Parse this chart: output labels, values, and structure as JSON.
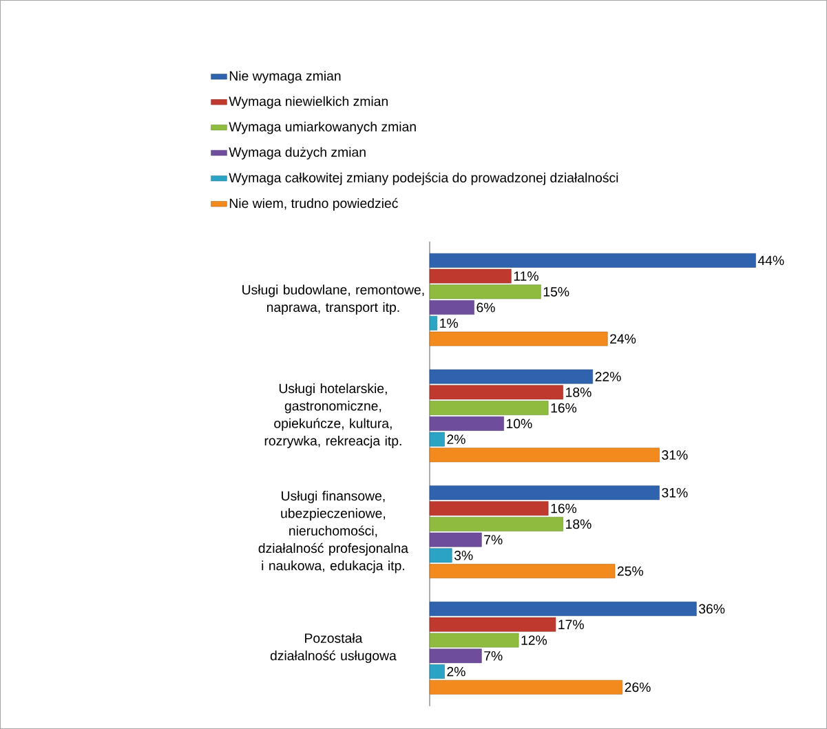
{
  "chart_data": {
    "type": "bar",
    "orientation": "horizontal",
    "legend": "top",
    "categories": [
      "Usługi budowlane, remontowe, naprawa, transport itp.",
      "Usługi hotelarskie, gastronomiczne, opiekuńcze, kultura, rozrywka, rekreacja itp.",
      "Usługi finansowe, ubezpieczeniowe, nieruchomości, działalność profesjonalna i naukowa, edukacja itp.",
      "Pozostała działalność usługowa"
    ],
    "series": [
      {
        "name": "Nie wymaga zmian",
        "color": "#2f63ad",
        "values": [
          44,
          22,
          31,
          36
        ],
        "value_labels": [
          "44%",
          "22%",
          "31%",
          "36%"
        ]
      },
      {
        "name": "Wymaga niewielkich zmian",
        "color": "#c0392f",
        "values": [
          11,
          18,
          16,
          17
        ],
        "value_labels": [
          "11%",
          "18%",
          "16%",
          "17%"
        ]
      },
      {
        "name": "Wymaga umiarkowanych zmian",
        "color": "#8fbc3f",
        "values": [
          15,
          16,
          18,
          12
        ],
        "value_labels": [
          "15%",
          "16%",
          "18%",
          "12%"
        ]
      },
      {
        "name": "Wymaga dużych zmian",
        "color": "#6e4e9c",
        "values": [
          6,
          10,
          7,
          7
        ],
        "value_labels": [
          "6%",
          "10%",
          "7%",
          "7%"
        ]
      },
      {
        "name": "Wymaga całkowitej zmiany podejścia do prowadzonej działalności",
        "color": "#2aa3c4",
        "values": [
          1,
          2,
          3,
          2
        ],
        "value_labels": [
          "1%",
          "2%",
          "3%",
          "2%"
        ]
      },
      {
        "name": "Nie wiem, trudno powiedzieć",
        "color": "#f28a1e",
        "values": [
          24,
          31,
          25,
          26
        ],
        "value_labels": [
          "24%",
          "31%",
          "25%",
          "26%"
        ]
      }
    ]
  }
}
